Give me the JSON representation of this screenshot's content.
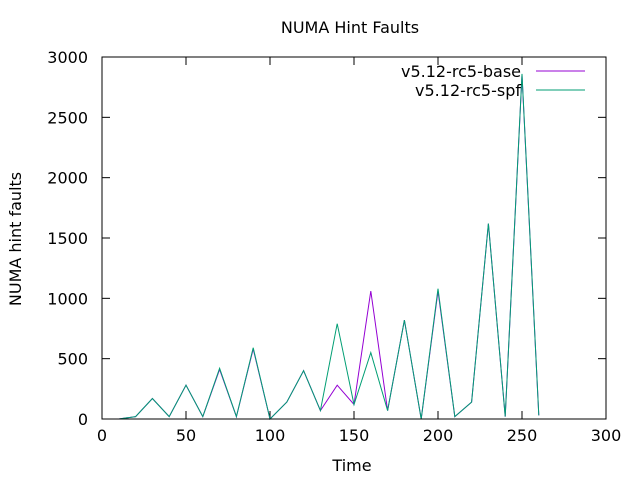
{
  "chart_data": {
    "type": "line",
    "title": "NUMA Hint Faults",
    "xlabel": "Time",
    "ylabel": "NUMA hint faults",
    "xlim": [
      0,
      300
    ],
    "ylim": [
      0,
      3000
    ],
    "xticks": [
      0,
      50,
      100,
      150,
      200,
      250,
      300
    ],
    "yticks": [
      0,
      500,
      1000,
      1500,
      2000,
      2500,
      3000
    ],
    "grid": false,
    "legend_position": "top-right",
    "x": [
      10,
      20,
      30,
      40,
      50,
      60,
      70,
      80,
      90,
      100,
      110,
      120,
      130,
      140,
      150,
      160,
      170,
      180,
      190,
      200,
      210,
      220,
      230,
      240,
      250,
      260
    ],
    "series": [
      {
        "name": "v5.12-rc5-base",
        "color": "#9400d3",
        "values": [
          0,
          20,
          170,
          20,
          280,
          20,
          410,
          20,
          580,
          0,
          140,
          400,
          70,
          280,
          120,
          1060,
          70,
          820,
          0,
          1060,
          20,
          140,
          1620,
          20,
          2850,
          30
        ]
      },
      {
        "name": "v5.12-rc5-spf",
        "color": "#009e73",
        "values": [
          0,
          20,
          170,
          20,
          280,
          20,
          420,
          20,
          590,
          0,
          140,
          400,
          70,
          790,
          120,
          550,
          70,
          820,
          0,
          1080,
          20,
          140,
          1620,
          20,
          2860,
          30
        ]
      }
    ]
  }
}
